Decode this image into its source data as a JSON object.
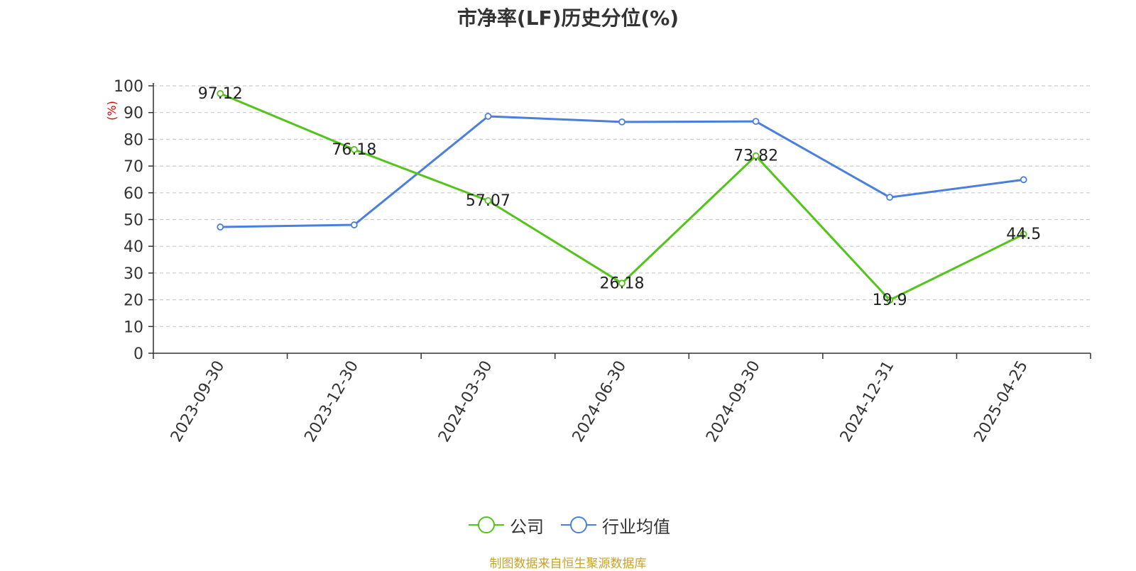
{
  "chart_data": {
    "type": "line",
    "title": "市净率(LF)历史分位(%)",
    "ylabel": "(%)",
    "xlabel": "",
    "categories": [
      "2023-09-30",
      "2023-12-30",
      "2024-03-30",
      "2024-06-30",
      "2024-09-30",
      "2024-12-31",
      "2025-04-25"
    ],
    "ylim": [
      0,
      100
    ],
    "yticks": [
      0,
      10,
      20,
      30,
      40,
      50,
      60,
      70,
      80,
      90,
      100
    ],
    "grid": true,
    "legend_position": "bottom",
    "series": [
      {
        "name": "公司",
        "color": "#52c41a",
        "show_labels": true,
        "values": [
          97.12,
          76.18,
          57.07,
          26.18,
          73.82,
          19.9,
          44.5
        ]
      },
      {
        "name": "行业均值",
        "color": "#4a7fdc",
        "show_labels": false,
        "values": [
          47.2,
          48.0,
          88.6,
          86.5,
          86.7,
          58.3,
          64.9
        ]
      }
    ]
  },
  "source_note": "制图数据来自恒生聚源数据库"
}
